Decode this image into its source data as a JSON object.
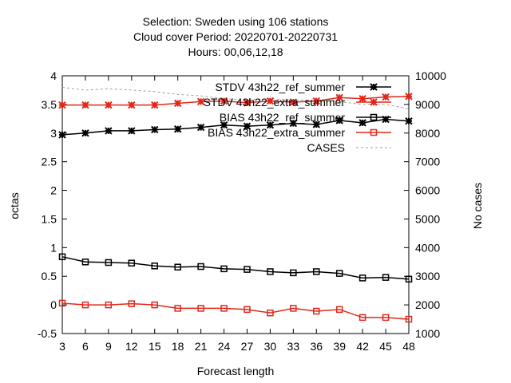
{
  "chart_data": {
    "type": "line",
    "title_lines": [
      "Selection: Sweden using   106 stations",
      "Cloud cover   Period: 20220701-20220731",
      "Hours:  00,06,12,18"
    ],
    "xlabel": "Forecast length",
    "ylabel": "octas",
    "y2label": "No cases",
    "x": [
      3,
      6,
      9,
      12,
      15,
      18,
      21,
      24,
      27,
      30,
      33,
      36,
      39,
      42,
      45,
      48
    ],
    "xlim": [
      3,
      48
    ],
    "ylim": [
      -0.5,
      4
    ],
    "y2lim": [
      1000,
      10000
    ],
    "x_ticks": [
      "3",
      "6",
      "9",
      "12",
      "15",
      "18",
      "21",
      "24",
      "27",
      "30",
      "33",
      "36",
      "39",
      "42",
      "45",
      "48"
    ],
    "y_ticks": [
      "-0.5",
      "0",
      "0.5",
      "1",
      "1.5",
      "2",
      "2.5",
      "3",
      "3.5",
      "4"
    ],
    "y2_ticks": [
      "1000",
      "2000",
      "3000",
      "4000",
      "5000",
      "6000",
      "7000",
      "8000",
      "9000",
      "10000"
    ],
    "grid": false,
    "legend_position": "top-right",
    "series": [
      {
        "name": "STDV 43h22_ref_summer",
        "axis": "y",
        "marker": "star",
        "color": "#000000",
        "values": [
          2.97,
          3.0,
          3.04,
          3.04,
          3.06,
          3.07,
          3.1,
          3.14,
          3.12,
          3.14,
          3.17,
          3.15,
          3.22,
          3.18,
          3.24,
          3.21
        ]
      },
      {
        "name": "STDV 43h22_extra_summer",
        "axis": "y",
        "marker": "star",
        "color": "#e0281a",
        "values": [
          3.49,
          3.49,
          3.49,
          3.49,
          3.49,
          3.52,
          3.55,
          3.56,
          3.53,
          3.56,
          3.54,
          3.56,
          3.62,
          3.6,
          3.63,
          3.64
        ]
      },
      {
        "name": "BIAS 43h22_ref_summer",
        "axis": "y",
        "marker": "square",
        "color": "#000000",
        "values": [
          0.84,
          0.75,
          0.74,
          0.73,
          0.68,
          0.66,
          0.67,
          0.63,
          0.62,
          0.58,
          0.56,
          0.58,
          0.55,
          0.47,
          0.48,
          0.45
        ]
      },
      {
        "name": "BIAS 43h22_extra_summer",
        "axis": "y",
        "marker": "square",
        "color": "#e0281a",
        "values": [
          0.03,
          0.0,
          0.0,
          0.02,
          0.0,
          -0.06,
          -0.06,
          -0.06,
          -0.08,
          -0.14,
          -0.06,
          -0.11,
          -0.08,
          -0.22,
          -0.22,
          -0.25
        ]
      },
      {
        "name": "CASES",
        "axis": "y2",
        "marker": "none",
        "color": "#a0a0a0",
        "dashed": true,
        "values": [
          9600,
          9500,
          9550,
          9500,
          9450,
          9350,
          9300,
          9200,
          9150,
          9200,
          9150,
          9150,
          9100,
          9000,
          9000,
          8850
        ]
      }
    ],
    "legend": [
      {
        "label": "STDV 43h22_ref_summer"
      },
      {
        "label": "STDV 43h22_extra_summer"
      },
      {
        "label": "BIAS 43h22_ref_summer"
      },
      {
        "label": "BIAS 43h22_extra_summer"
      },
      {
        "label": "CASES"
      }
    ]
  }
}
